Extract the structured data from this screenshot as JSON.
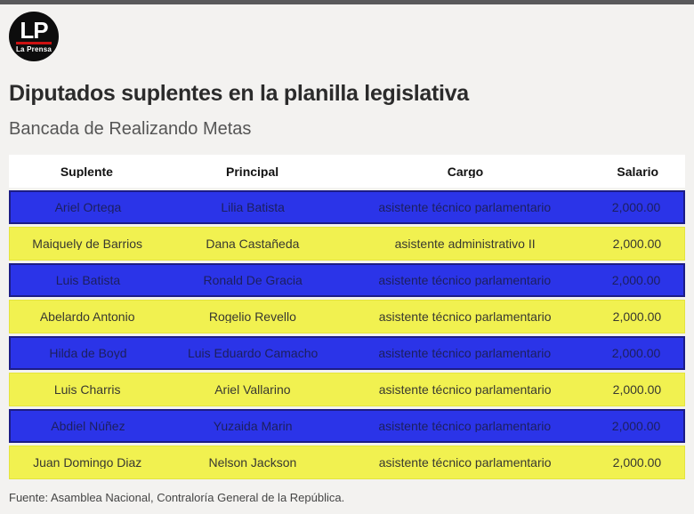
{
  "brand": {
    "logo_text": "LP",
    "logo_subtext": "La Prensa"
  },
  "header": {
    "title": "Diputados suplentes en la planilla legislativa",
    "subtitle": "Bancada de Realizando Metas"
  },
  "footer": {
    "source": "Fuente: Asamblea Nacional, Contraloría General de la República."
  },
  "colors": {
    "page_bg": "#f3f2f0",
    "top_bar": "#59595b",
    "row_blue": "#2b34e8",
    "row_blue_border": "#1c1c86",
    "row_blue_text": "#1c1f5e",
    "row_yellow": "#f1f150",
    "row_yellow_border": "#e4e43e",
    "row_yellow_text": "#383830",
    "logo_red": "#cc1111"
  },
  "chart_data": {
    "type": "table",
    "title": "Diputados suplentes en la planilla legislativa",
    "subtitle": "Bancada de Realizando Metas",
    "columns": [
      "Suplente",
      "Principal",
      "Cargo",
      "Salario"
    ],
    "rows": [
      {
        "variant": "blue",
        "cells": [
          "Ariel Ortega",
          "Lilia Batista",
          "asistente técnico parlamentario",
          "2,000.00"
        ]
      },
      {
        "variant": "yellow",
        "cells": [
          "Maiquely de Barrios",
          "Dana Castañeda",
          "asistente administrativo II",
          "2,000.00"
        ]
      },
      {
        "variant": "blue",
        "cells": [
          "Luis Batista",
          "Ronald De Gracia",
          "asistente técnico parlamentario",
          "2,000.00"
        ]
      },
      {
        "variant": "yellow",
        "cells": [
          "Abelardo Antonio",
          "Rogelio Revello",
          "asistente técnico parlamentario",
          "2,000.00"
        ]
      },
      {
        "variant": "blue",
        "cells": [
          "Hilda de Boyd",
          "Luis Eduardo Camacho",
          "asistente técnico parlamentario",
          "2,000.00"
        ]
      },
      {
        "variant": "yellow",
        "cells": [
          "Luis Charris",
          "Ariel Vallarino",
          "asistente técnico parlamentario",
          "2,000.00"
        ]
      },
      {
        "variant": "blue",
        "cells": [
          "Abdiel Núñez",
          "Yuzaida Marin",
          "asistente técnico parlamentario",
          "2,000.00"
        ]
      },
      {
        "variant": "yellow",
        "cells": [
          "Juan Domingo Diaz",
          "Nelson Jackson",
          "asistente técnico parlamentario",
          "2,000.00"
        ]
      }
    ],
    "source": "Fuente: Asamblea Nacional, Contraloría General de la República.",
    "legend_position": "none",
    "grid": false
  }
}
